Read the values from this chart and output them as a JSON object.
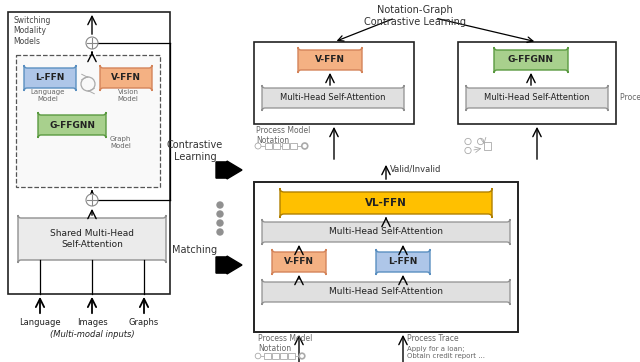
{
  "fig_width": 6.4,
  "fig_height": 3.62,
  "dpi": 100,
  "bg_color": "#ffffff",
  "colors": {
    "lffn_fill": "#aec6e8",
    "lffn_edge": "#5a8fc0",
    "vffn_fill": "#f4b183",
    "vffn_edge": "#d4845a",
    "gffgnn_fill": "#a8d08d",
    "gffgnn_edge": "#5a9a40",
    "vlffn_fill": "#ffc000",
    "vlffn_edge": "#b08000",
    "mhsa_fill": "#e0e0e0",
    "mhsa_edge": "#909090",
    "shared_fill": "#ebebeb",
    "shared_edge": "#909090",
    "outer_edge": "#222222",
    "dashed_edge": "#555555",
    "box_edge": "#222222",
    "arrow_color": "#111111",
    "label_color": "#444444",
    "subtext_color": "#666666"
  },
  "text": {
    "switching": "Switching\nModality\nModels",
    "contrastive_label": "Contrastive\nLearning",
    "matching_label": "Matching",
    "notation_graph": "Notation-Graph\nContrastive Learning",
    "vffn": "V-FFN",
    "lffn": "L-FFN",
    "gffgnn": "G-FFGNN",
    "vlffn": "VL-FFN",
    "mhsa": "Multi-Head Self-Attention",
    "shared_mhsa": "Shared Multi-Head\nSelf-Attention",
    "lang_model": "Language\nModel",
    "vision_model": "Vision\nModel",
    "graph_model": "Graph\nModel",
    "language": "Language",
    "images": "Images",
    "graphs": "Graphs",
    "multimodal": "(Multi-modal inputs)",
    "valid_invalid": "Valid/Invalid",
    "process_model_notation": "Process Model\nNotation",
    "process_graph": "Process Graph",
    "process_trace": "Process Trace",
    "process_model_notation2": "Process Model\nNotation",
    "apply_loan": "Apply for a loan;\nObtain credit report ..."
  }
}
